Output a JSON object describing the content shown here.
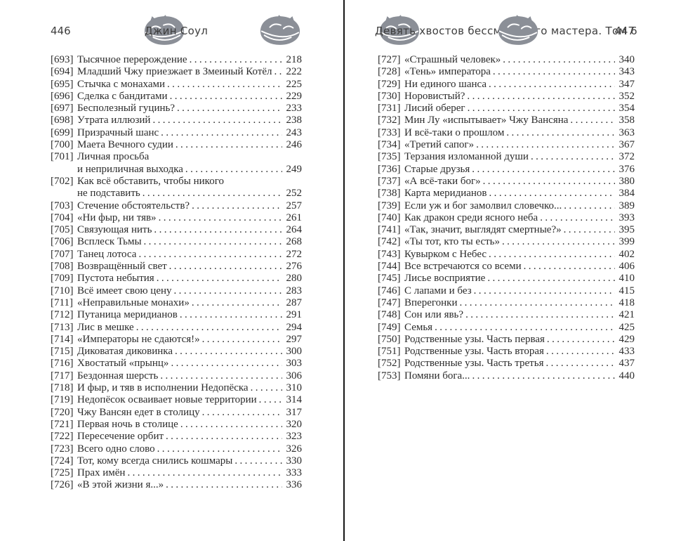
{
  "colors": {
    "text": "#2b2b2b",
    "header_text": "#3d3d3d",
    "ornament_gray": "#8b8f97",
    "gutter_divider": "#161616",
    "background": "#ffffff"
  },
  "icons": {
    "header_ornament": "sleeping-fox-icon"
  },
  "left_page": {
    "page_number": "446",
    "header_title": "Джин Соул",
    "rows": [
      {
        "num": "[693]",
        "title": "Тысячное перерождение",
        "page": "218"
      },
      {
        "num": "[694]",
        "title": "Младший Чжу приезжает в Змеиный Котёл",
        "page": "222"
      },
      {
        "num": "[695]",
        "title": "Стычка с монахами",
        "page": "225"
      },
      {
        "num": "[696]",
        "title": "Сделка с бандитами",
        "page": "229"
      },
      {
        "num": "[697]",
        "title": "Бесполезный гуцинь?",
        "page": "233"
      },
      {
        "num": "[698]",
        "title": "Утрата иллюзий",
        "page": "238"
      },
      {
        "num": "[699]",
        "title": "Призрачный шанс",
        "page": "243"
      },
      {
        "num": "[700]",
        "title": "Маета Вечного судии",
        "page": "246"
      },
      {
        "num": "[701]",
        "title": "Личная просьба",
        "page": ""
      },
      {
        "num": "",
        "title": "и неприличная выходка",
        "page": "249"
      },
      {
        "num": "[702]",
        "title": "Как всё обставить, чтобы никого",
        "page": ""
      },
      {
        "num": "",
        "title": "не подставить",
        "page": "252"
      },
      {
        "num": "[703]",
        "title": "Стечение обстоятельств?",
        "page": "257"
      },
      {
        "num": "[704]",
        "title": "«Ни фыр, ни тяв»",
        "page": "261"
      },
      {
        "num": "[705]",
        "title": "Связующая нить",
        "page": "264"
      },
      {
        "num": "[706]",
        "title": "Всплеск Тьмы",
        "page": "268"
      },
      {
        "num": "[707]",
        "title": "Танец лотоса",
        "page": "272"
      },
      {
        "num": "[708]",
        "title": "Возвращённый свет",
        "page": "276"
      },
      {
        "num": "[709]",
        "title": "Пустота небытия",
        "page": "280"
      },
      {
        "num": "[710]",
        "title": "Всё имеет свою цену",
        "page": "283"
      },
      {
        "num": "[711]",
        "title": "«Неправильные монахи»",
        "page": "287"
      },
      {
        "num": "[712]",
        "title": "Путаница меридианов",
        "page": "291"
      },
      {
        "num": "[713]",
        "title": "Лис в мешке",
        "page": "294"
      },
      {
        "num": "[714]",
        "title": "«Императоры не сдаются!»",
        "page": "297"
      },
      {
        "num": "[715]",
        "title": "Диковатая диковинка",
        "page": "300"
      },
      {
        "num": "[716]",
        "title": "Хвостатый «прынц»",
        "page": "303"
      },
      {
        "num": "[717]",
        "title": "Бездонная шерсть",
        "page": "306"
      },
      {
        "num": "[718]",
        "title": "И фыр, и тяв в исполнении Недопёска",
        "page": "310"
      },
      {
        "num": "[719]",
        "title": "Недопёсок осваивает новые территории",
        "page": "314"
      },
      {
        "num": "[720]",
        "title": "Чжу Вансян едет в столицу",
        "page": "317"
      },
      {
        "num": "[721]",
        "title": "Первая ночь в столице",
        "page": "320"
      },
      {
        "num": "[722]",
        "title": "Пересечение орбит",
        "page": "323"
      },
      {
        "num": "[723]",
        "title": "Всего одно слово",
        "page": "326"
      },
      {
        "num": "[724]",
        "title": "Тот, кому всегда снились кошмары",
        "page": "330"
      },
      {
        "num": "[725]",
        "title": "Прах имён",
        "page": "333"
      },
      {
        "num": "[726]",
        "title": "«В этой жизни я...»",
        "page": "336"
      }
    ]
  },
  "right_page": {
    "page_number": "447",
    "header_title": "Девять хвостов бессмертного мастера. Том 6",
    "rows": [
      {
        "num": "[727]",
        "title": "«Страшный человек»",
        "page": "340"
      },
      {
        "num": "[728]",
        "title": "«Тень» императора",
        "page": "343"
      },
      {
        "num": "[729]",
        "title": "Ни единого шанса",
        "page": "347"
      },
      {
        "num": "[730]",
        "title": "Норовистый?",
        "page": "352"
      },
      {
        "num": "[731]",
        "title": "Лисий оберег",
        "page": "354"
      },
      {
        "num": "[732]",
        "title": "Мин Лу «испытывает» Чжу Вансяна",
        "page": "358"
      },
      {
        "num": "[733]",
        "title": "И всё-таки о прошлом",
        "page": "363"
      },
      {
        "num": "[734]",
        "title": "«Третий сапог»",
        "page": "367"
      },
      {
        "num": "[735]",
        "title": "Терзания изломанной души",
        "page": "372"
      },
      {
        "num": "[736]",
        "title": "Старые друзья",
        "page": "376"
      },
      {
        "num": "[737]",
        "title": "«А всё-таки бог»",
        "page": "380"
      },
      {
        "num": "[738]",
        "title": "Карта меридианов",
        "page": "384"
      },
      {
        "num": "[739]",
        "title": "Если уж и бог замолвил словечко...",
        "page": "389"
      },
      {
        "num": "[740]",
        "title": "Как дракон среди ясного неба",
        "page": "393"
      },
      {
        "num": "[741]",
        "title": "«Так, значит, выглядят смертные?»",
        "page": "395"
      },
      {
        "num": "[742]",
        "title": "«Ты тот, кто ты есть»",
        "page": "399"
      },
      {
        "num": "[743]",
        "title": "Кувырком с Небес",
        "page": "402"
      },
      {
        "num": "[744]",
        "title": "Все встречаются со всеми",
        "page": "406"
      },
      {
        "num": "[745]",
        "title": "Лисье восприятие",
        "page": "410"
      },
      {
        "num": "[746]",
        "title": "С лапами и без",
        "page": "415"
      },
      {
        "num": "[747]",
        "title": "Вперегонки",
        "page": "418"
      },
      {
        "num": "[748]",
        "title": "Сон или явь?",
        "page": "421"
      },
      {
        "num": "[749]",
        "title": "Семья",
        "page": "425"
      },
      {
        "num": "[750]",
        "title": "Родственные узы. Часть первая",
        "page": "429"
      },
      {
        "num": "[751]",
        "title": "Родственные узы. Часть вторая",
        "page": "433"
      },
      {
        "num": "[752]",
        "title": "Родственные узы. Часть третья",
        "page": "437"
      },
      {
        "num": "[753]",
        "title": "Помяни бога...",
        "page": "440"
      }
    ]
  }
}
